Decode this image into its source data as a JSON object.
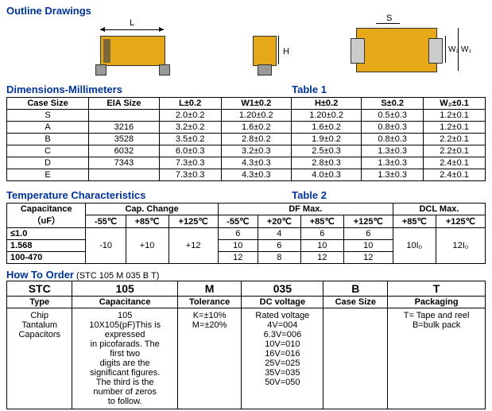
{
  "titles": {
    "outline": "Outline Drawings",
    "dims": "Dimensions-Millimeters",
    "temp": "Temperature Characteristics",
    "order": "How To Order",
    "order_example": "(STC 105 M 035 B T)",
    "table1": "Table 1",
    "table2": "Table 2"
  },
  "dim_labels": {
    "L": "L",
    "H": "H",
    "S": "S",
    "W1": "W₁",
    "W2": "W₂"
  },
  "dims_table": {
    "headers": [
      "Case Size",
      "EIA Size",
      "L±0.2",
      "W1±0.2",
      "H±0.2",
      "S±0.2",
      "W₂±0.1"
    ],
    "rows": [
      [
        "S",
        "",
        "2.0±0.2",
        "1.20±0.2",
        "1.20±0.2",
        "0.5±0.3",
        "1.2±0.1"
      ],
      [
        "A",
        "3216",
        "3.2±0.2",
        "1.6±0.2",
        "1.6±0.2",
        "0.8±0.3",
        "1.2±0.1"
      ],
      [
        "B",
        "3528",
        "3.5±0.2",
        "2.8±0.2",
        "1.9±0.2",
        "0.8±0.3",
        "2.2±0.1"
      ],
      [
        "C",
        "6032",
        "6.0±0.3",
        "3.2±0.3",
        "2.5±0.3",
        "1.3±0.3",
        "2.2±0.1"
      ],
      [
        "D",
        "7343",
        "7.3±0.3",
        "4.3±0.3",
        "2.8±0.3",
        "1.3±0.3",
        "2.4±0.1"
      ],
      [
        "E",
        "",
        "7.3±0.3",
        "4.3±0.3",
        "4.0±0.3",
        "1.3±0.3",
        "2.4±0.1"
      ]
    ]
  },
  "temp_table": {
    "h1": {
      "cap": "Capacitance\n（uF）",
      "change": "Cap. Change",
      "df": "DF Max.",
      "dcl": "DCL Max."
    },
    "h2": [
      "-55℃",
      "+85℃",
      "+125℃",
      "-55℃",
      "+20℃",
      "+85℃",
      "+125℃",
      "+85℃",
      "+125℃"
    ],
    "rows_left": [
      "≤1.0",
      "1.568",
      "100-470"
    ],
    "change_vals": [
      "-10",
      "+10",
      "+12"
    ],
    "df_rows": [
      [
        "6",
        "4",
        "6",
        "6"
      ],
      [
        "10",
        "6",
        "10",
        "10"
      ],
      [
        "12",
        "8",
        "12",
        "12"
      ]
    ],
    "dcl_vals": [
      "10I₀",
      "12I₀"
    ]
  },
  "order_table": {
    "headers": [
      "STC",
      "105",
      "M",
      "035",
      "B",
      "T"
    ],
    "sub": [
      "Type",
      "Capacitance",
      "Tolerance",
      "DC voltage",
      "Case Size",
      "Packaging"
    ],
    "cells": [
      "Chip\nTantalum\nCapacitors",
      "105\n10X105(pF)This is\nexpressed\nin picofarads. The\nfirst two\ndigits are the\nsignificant figures.\nThe third is the\nnumber of zeros\nto follow.",
      "K=±10%\nM=±20%",
      "Rated voltage\n4V=004\n6.3V=006\n10V=010\n16V=016\n25V=025\n35V=035\n50V=050",
      "",
      "T= Tape and reel\nB=bulk pack"
    ]
  },
  "colors": {
    "component": "#e6a817",
    "band": "#7a6a3a"
  }
}
